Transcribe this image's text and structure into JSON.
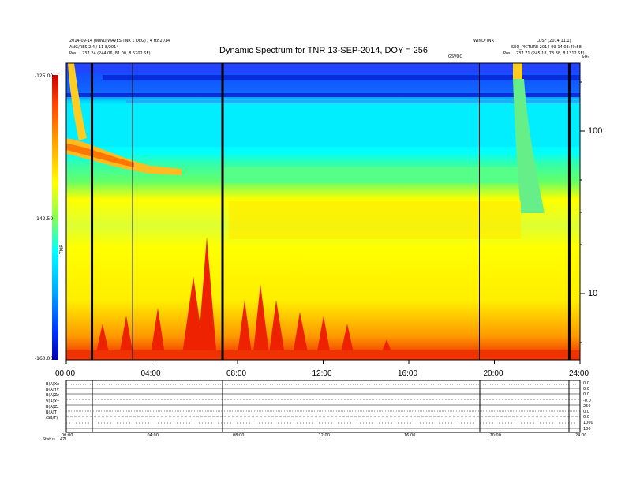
{
  "header": {
    "title": "Dynamic Spectrum for TNR 13-SEP-2014, DOY = 256",
    "left_line1": "2014-09-14 (WIND/WAVES TNR 1 DEG) / 4 Hz 2014",
    "left_line2": "ANG/RES 2.4 / 11 8/2014",
    "left_line3_label": "Pos.",
    "left_line3_value": "237.24 (244.06, 81.00, 8.5202 SE)",
    "mid_right_label": "GSVOC",
    "right_top1": "WIND/TNR",
    "right_top2": "LOSF (2014.11.1)",
    "right_line2": "SEQ_PICTURE 2014-09-14 03:49:58",
    "right_line3_label": "Pos.",
    "right_line3_value": "237.71 (245.18, 78.88, 8.1312 SE)",
    "right_corner": "kHz"
  },
  "colorbar": {
    "ticks": [
      "-125.00",
      "-142.50",
      "-160.00"
    ],
    "units_label": "TNR",
    "colors": [
      "#cc0000",
      "#ff4400",
      "#ff9900",
      "#ffff00",
      "#88ff55",
      "#00ffff",
      "#0077ff",
      "#0000aa"
    ]
  },
  "chart_data": {
    "type": "heatmap",
    "title": "Dynamic Spectrum for TNR 13-SEP-2014, DOY = 256",
    "x_ticks": [
      "00:00",
      "04:00",
      "08:00",
      "12:00",
      "16:00",
      "20:00",
      "24:00"
    ],
    "x_range_hours": [
      0,
      24
    ],
    "y_scale": "log",
    "y_unit": "kHz",
    "y_ticks": [
      10,
      100
    ],
    "y_range_khz": [
      4,
      256
    ],
    "intensity_range": [
      -160.0,
      -125.0
    ],
    "data_gap_lines_hours": [
      1.2,
      3.1,
      7.3,
      19.3,
      23.5
    ]
  },
  "strip": {
    "left_labels": [
      "B(A)Xx",
      "B(A)Yy",
      "B(A)Zz",
      "V(A)Xx",
      "B(A)Zz",
      "B(A)T",
      "(SB/T)",
      "",
      ""
    ],
    "right_labels": [
      "0.0",
      "0.0",
      "0.0",
      "-0.0",
      "250",
      "0.0",
      "0.0",
      "1000",
      "100"
    ],
    "bottom_ticks": [
      "00:00",
      "04:00",
      "08:00",
      "12:00",
      "16:00",
      "20:00",
      "24:00"
    ],
    "bottom_left_label": "Status",
    "bottom_left_value": "4ZL"
  }
}
